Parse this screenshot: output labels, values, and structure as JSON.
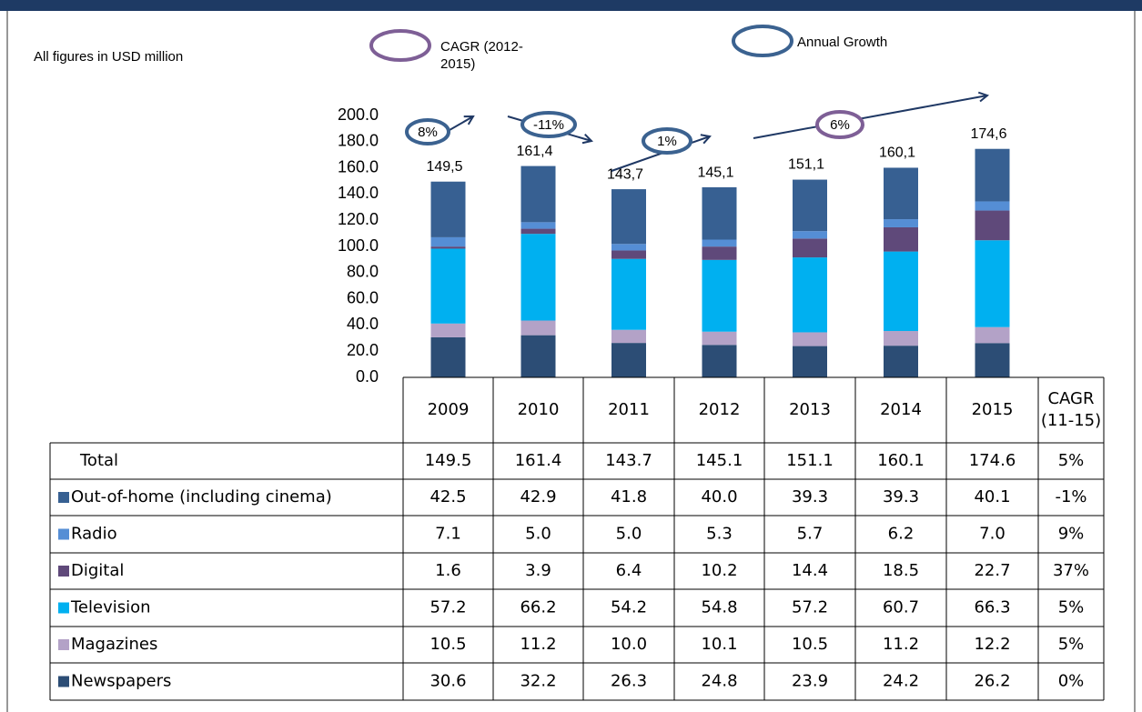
{
  "chart_data": {
    "type": "bar",
    "stacked": true,
    "subtitle": "All figures in USD million",
    "legend_annotations": [
      {
        "kind": "cagr",
        "lines": [
          "CAGR (2012-",
          "2015)"
        ],
        "color": "#7e5f96"
      },
      {
        "kind": "annual",
        "lines": [
          "Annual Growth"
        ],
        "color": "#3b6290"
      }
    ],
    "categories": [
      "2009",
      "2010",
      "2011",
      "2012",
      "2013",
      "2014",
      "2015"
    ],
    "extra_column": "CAGR (11-15)",
    "ylim": [
      0,
      200
    ],
    "yticks": [
      {
        "value": 0,
        "label": "0.0"
      },
      {
        "value": 20,
        "label": "20.0"
      },
      {
        "value": 40,
        "label": "40.0"
      },
      {
        "value": 60,
        "label": "60.0"
      },
      {
        "value": 80,
        "label": "80.0"
      },
      {
        "value": 100,
        "label": "100.0"
      },
      {
        "value": 120,
        "label": "120.0"
      },
      {
        "value": 140,
        "label": "140.0"
      },
      {
        "value": 160,
        "label": "160.0"
      },
      {
        "value": 180,
        "label": "180.0"
      },
      {
        "value": 200,
        "label": "200.0"
      }
    ],
    "total": {
      "name": "Total",
      "values": [
        149.5,
        161.4,
        143.7,
        145.1,
        151.1,
        160.1,
        174.6
      ],
      "value_labels": [
        "149.5",
        "161.4",
        "143.7",
        "145.1",
        "151.1",
        "160.1",
        "174.6"
      ],
      "bar_labels": [
        "149,5",
        "161,4",
        "143,7",
        "145,1",
        "151,1",
        "160,1",
        "174,6"
      ],
      "cagr": "5%"
    },
    "series": [
      {
        "name": "Out-of-home (including cinema)",
        "color": "#376092",
        "values": [
          42.5,
          42.9,
          41.8,
          40.0,
          39.3,
          39.3,
          40.1
        ],
        "value_labels": [
          "42.5",
          "42.9",
          "41.8",
          "40.0",
          "39.3",
          "39.3",
          "40.1"
        ],
        "cagr": "-1%"
      },
      {
        "name": "Radio",
        "color": "#558ed5",
        "values": [
          7.1,
          5.0,
          5.0,
          5.3,
          5.7,
          6.2,
          7.0
        ],
        "value_labels": [
          "7.1",
          "5.0",
          "5.0",
          "5.3",
          "5.7",
          "6.2",
          "7.0"
        ],
        "cagr": "9%"
      },
      {
        "name": "Digital",
        "color": "#5f497a",
        "values": [
          1.6,
          3.9,
          6.4,
          10.2,
          14.4,
          18.5,
          22.7
        ],
        "value_labels": [
          "1.6",
          "3.9",
          "6.4",
          "10.2",
          "14.4",
          "18.5",
          "22.7"
        ],
        "cagr": "37%"
      },
      {
        "name": "Television",
        "color": "#00b0f0",
        "values": [
          57.2,
          66.2,
          54.2,
          54.8,
          57.2,
          60.7,
          66.3
        ],
        "value_labels": [
          "57.2",
          "66.2",
          "54.2",
          "54.8",
          "57.2",
          "60.7",
          "66.3"
        ],
        "cagr": "5%"
      },
      {
        "name": "Magazines",
        "color": "#b3a2c7",
        "values": [
          10.5,
          11.2,
          10.0,
          10.1,
          10.5,
          11.2,
          12.2
        ],
        "value_labels": [
          "10.5",
          "11.2",
          "10.0",
          "10.1",
          "10.5",
          "11.2",
          "12.2"
        ],
        "cagr": "5%"
      },
      {
        "name": "Newspapers",
        "color": "#2c4d75",
        "values": [
          30.6,
          32.2,
          26.3,
          24.8,
          23.9,
          24.2,
          26.2
        ],
        "value_labels": [
          "30.6",
          "32.2",
          "26.3",
          "24.8",
          "23.9",
          "24.2",
          "26.2"
        ],
        "cagr": "0%"
      }
    ],
    "growth_annotations": [
      {
        "kind": "annual",
        "text": "8%"
      },
      {
        "kind": "annual",
        "text": "-11%"
      },
      {
        "kind": "annual",
        "text": "1%"
      },
      {
        "kind": "cagr",
        "text": "6%"
      }
    ]
  }
}
